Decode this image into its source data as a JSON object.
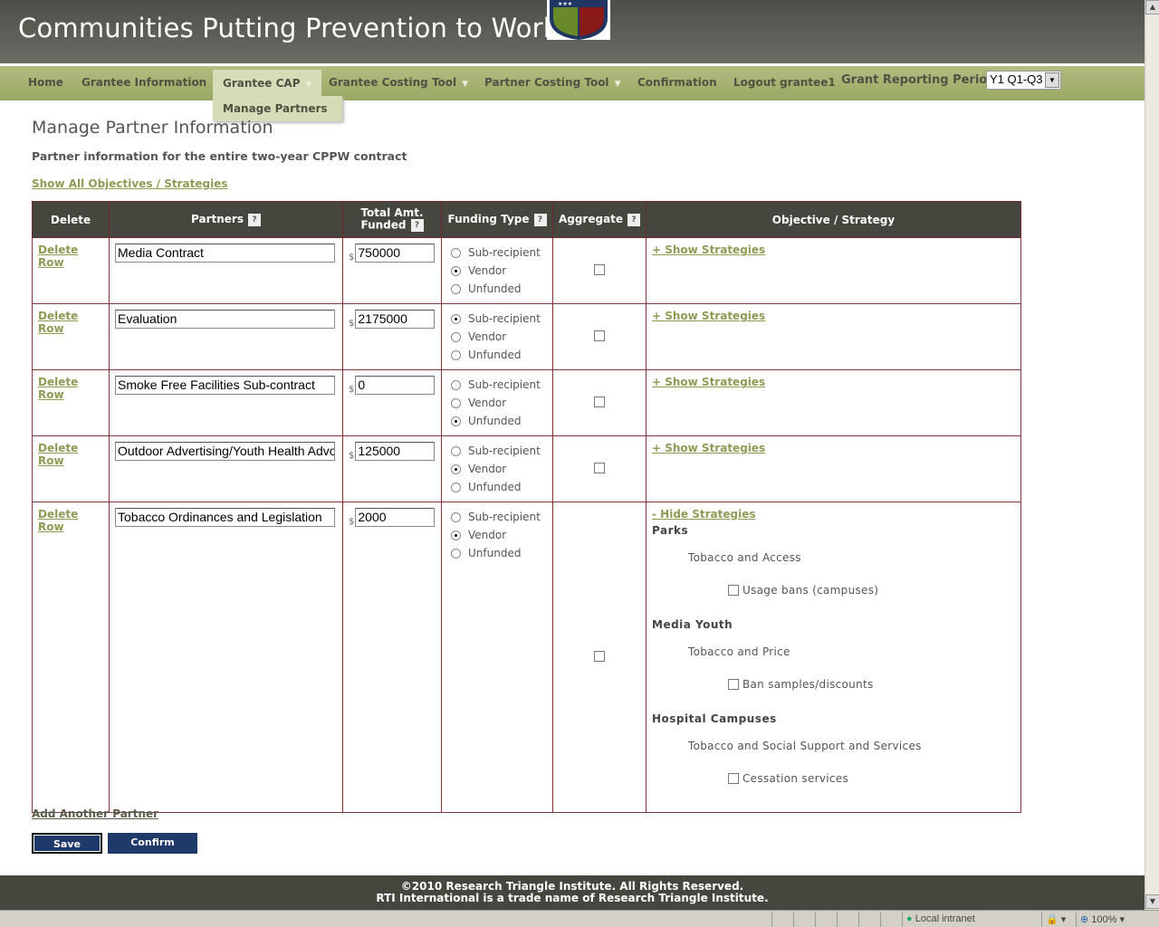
{
  "header": {
    "title": "Communities Putting Prevention to Work"
  },
  "nav": {
    "items": [
      {
        "label": "Home",
        "dropdown": false
      },
      {
        "label": "Grantee Information",
        "dropdown": false
      },
      {
        "label": "Grantee CAP",
        "dropdown": true,
        "active": true
      },
      {
        "label": "Grantee Costing Tool",
        "dropdown": true
      },
      {
        "label": "Partner Costing Tool",
        "dropdown": true
      },
      {
        "label": "Confirmation",
        "dropdown": false
      },
      {
        "label": "Logout grantee1",
        "dropdown": false
      }
    ],
    "submenu": [
      "Manage Partners"
    ],
    "period_label": "Grant Reporting Period:",
    "period_value": "Y1 Q1-Q3"
  },
  "main": {
    "title": "Manage Partner Information",
    "subtitle": "Partner information for the entire two-year CPPW contract",
    "show_all": "Show All Objectives / Strategies",
    "columns": [
      "Delete",
      "Partners",
      "Total Amt. Funded",
      "Funding Type",
      "Aggregate",
      "Objective / Strategy"
    ],
    "help": "?",
    "delete_label": "Delete Row",
    "currency": "$",
    "funding_options": [
      "Sub-recipient",
      "Vendor",
      "Unfunded"
    ],
    "show_strategies": "+ Show Strategies",
    "hide_strategies": "- Hide Strategies",
    "rows": [
      {
        "partner": "Media Contract",
        "amount": "750000",
        "funding": "Vendor",
        "aggregate": false,
        "expanded": false
      },
      {
        "partner": "Evaluation",
        "amount": "2175000",
        "funding": "Sub-recipient",
        "aggregate": false,
        "expanded": false
      },
      {
        "partner": "Smoke Free Facilities Sub-contract",
        "amount": "0",
        "funding": "Unfunded",
        "aggregate": false,
        "expanded": false
      },
      {
        "partner": "Outdoor Advertising/Youth Health Advocat",
        "amount": "125000",
        "funding": "Vendor",
        "aggregate": false,
        "expanded": false
      },
      {
        "partner": "Tobacco Ordinances and Legislation",
        "amount": "2000",
        "funding": "Vendor",
        "aggregate": false,
        "expanded": true,
        "strategies": [
          {
            "objective": "Parks",
            "sub": "Tobacco and Access",
            "item": "Usage bans (campuses)",
            "checked": false
          },
          {
            "objective": "Media Youth",
            "sub": "Tobacco and Price",
            "item": "Ban samples/discounts",
            "checked": false
          },
          {
            "objective": "Hospital Campuses",
            "sub": "Tobacco and Social Support and Services",
            "item": "Cessation services",
            "checked": false
          }
        ]
      }
    ],
    "add_partner": "Add Another Partner",
    "save": "Save",
    "confirm": "Confirm"
  },
  "footer": {
    "line1": "©2010 Research Triangle Institute. All Rights Reserved.",
    "line2": "RTI International is a trade name of Research Triangle Institute."
  },
  "statusbar": {
    "zone": "Local intranet",
    "zoom": "100%"
  }
}
